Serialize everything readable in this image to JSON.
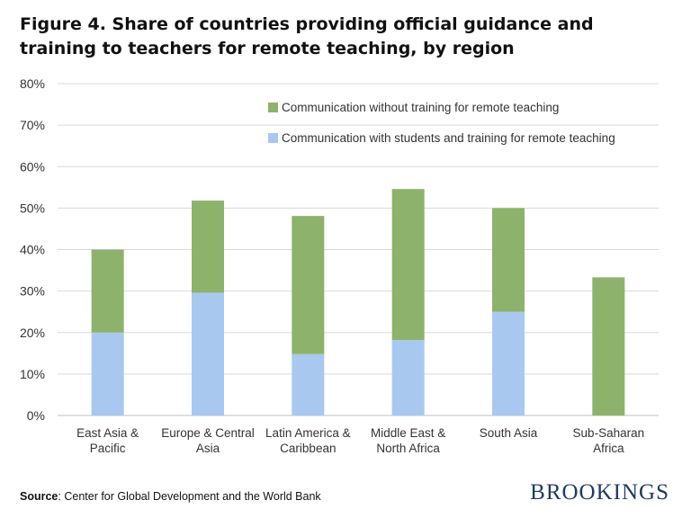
{
  "title": "Figure 4. Share of countries providing official guidance and training to teachers for remote teaching, by region",
  "source_label": "Source",
  "source_text": ": Center for Global Development and the World Bank",
  "brand": "BROOKINGS",
  "colors": {
    "green": "#8db26b",
    "blue": "#a8c8f0",
    "grid": "#d9d9d9",
    "axis": "#bfbfbf",
    "text": "#333333"
  },
  "chart_data": {
    "type": "bar",
    "stacked": true,
    "title": "Figure 4. Share of countries providing official guidance and training to teachers for remote teaching, by region",
    "xlabel": "",
    "ylabel": "",
    "ylim": [
      0,
      80
    ],
    "yticks": [
      0,
      10,
      20,
      30,
      40,
      50,
      60,
      70,
      80
    ],
    "ytick_labels": [
      "0%",
      "10%",
      "20%",
      "30%",
      "40%",
      "50%",
      "60%",
      "70%",
      "80%"
    ],
    "grid": true,
    "legend_position": "top-right",
    "categories": [
      [
        "East Asia &",
        "Pacific"
      ],
      [
        "Europe & Central",
        "Asia"
      ],
      [
        "Latin America &",
        "Caribbean"
      ],
      [
        "Middle East &",
        "North Africa"
      ],
      [
        "South Asia"
      ],
      [
        "Sub-Saharan",
        "Africa"
      ]
    ],
    "series": [
      {
        "name": "Communication with students and training for remote teaching",
        "color": "#a8c8f0",
        "values": [
          20,
          29.6,
          14.8,
          18.2,
          25,
          0
        ]
      },
      {
        "name": "Communication without training for remote teaching",
        "color": "#8db26b",
        "values": [
          20,
          22.2,
          33.3,
          36.4,
          25,
          33.3
        ]
      }
    ],
    "legend_order": [
      1,
      0
    ]
  }
}
